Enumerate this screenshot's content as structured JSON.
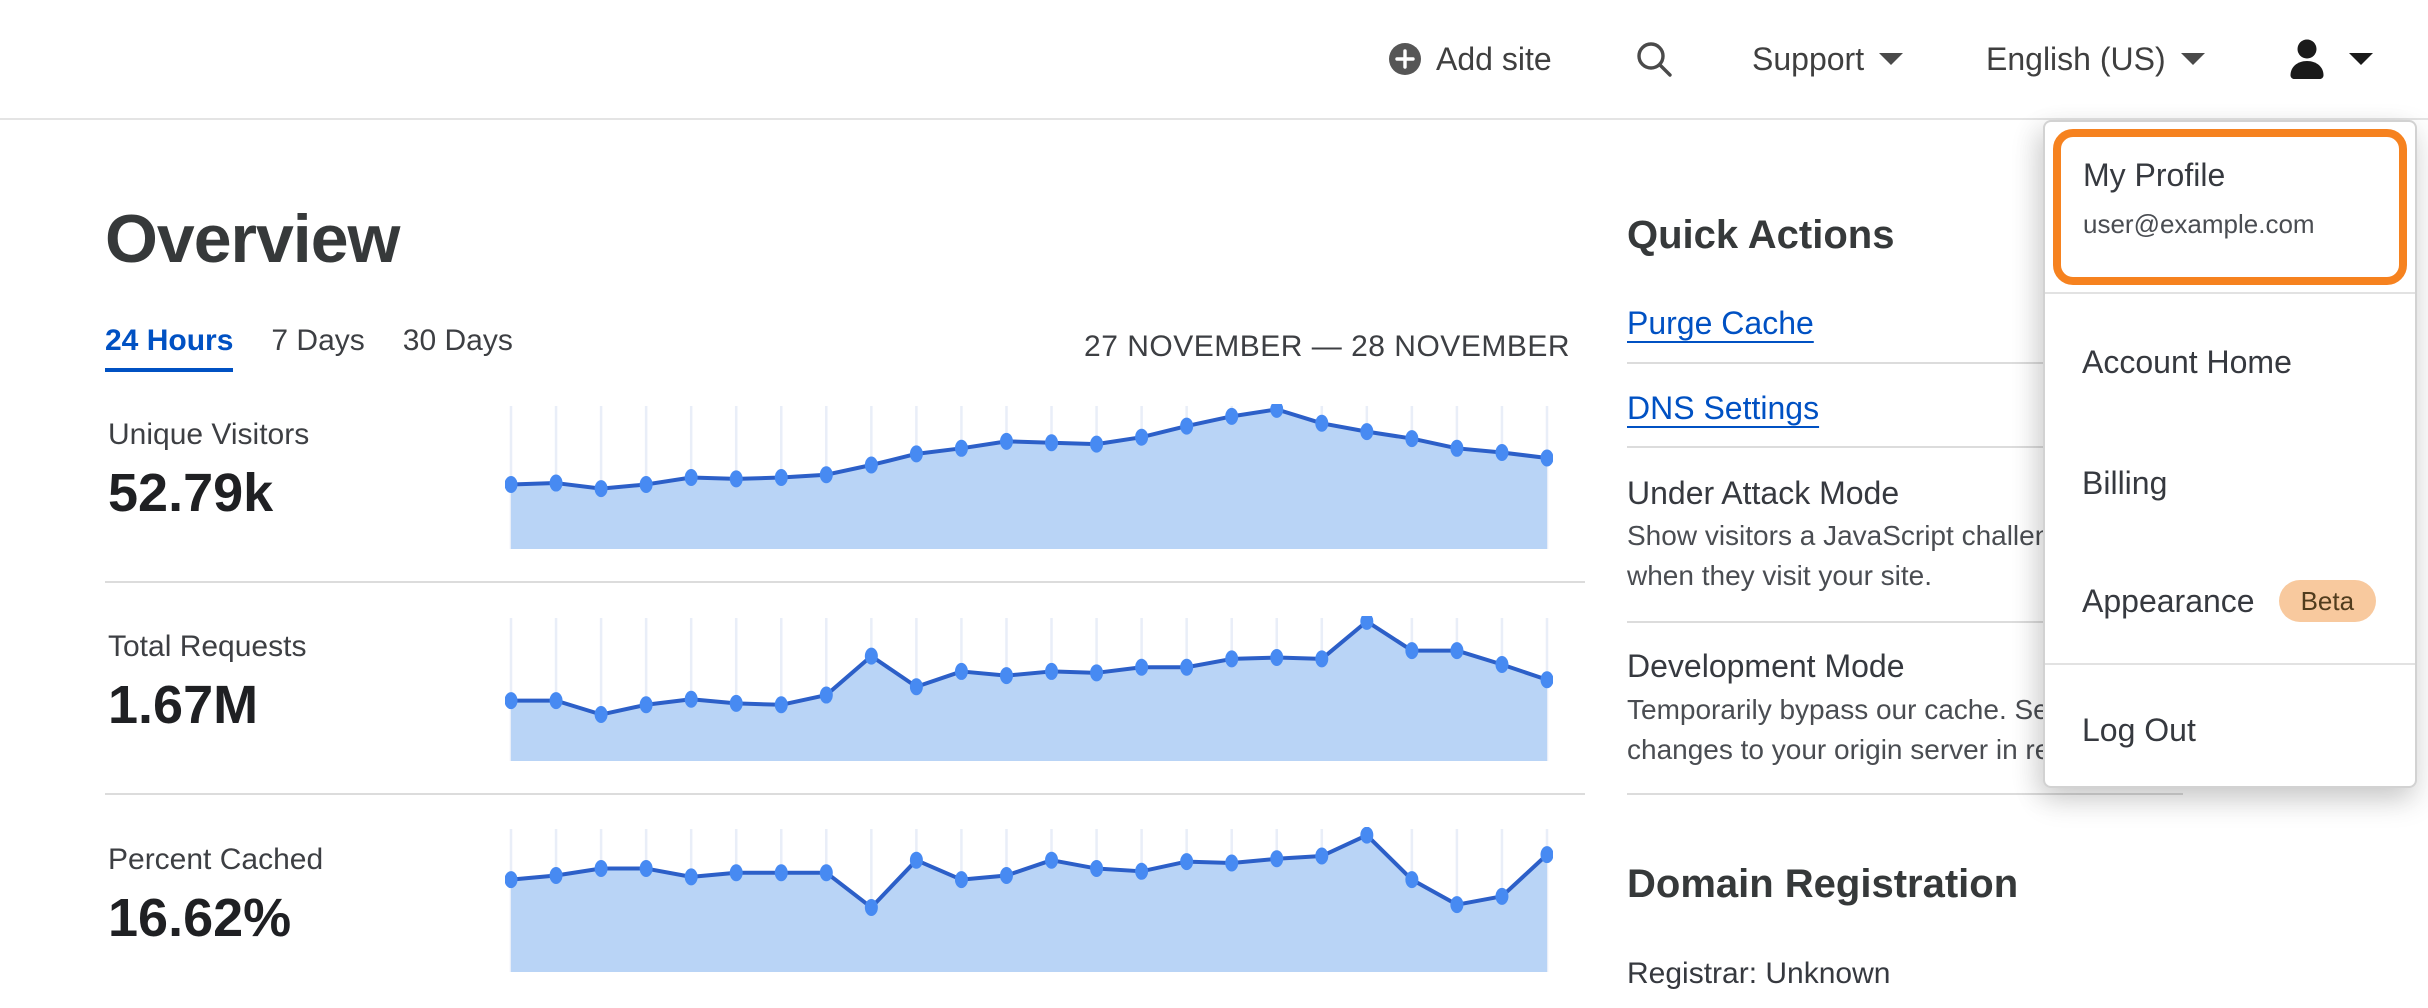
{
  "header": {
    "add_site_label": "Add site",
    "support_label": "Support",
    "language_label": "English (US)"
  },
  "overview": {
    "title": "Overview",
    "tabs": [
      {
        "label": "24 Hours",
        "active": true
      },
      {
        "label": "7 Days",
        "active": false
      },
      {
        "label": "30 Days",
        "active": false
      }
    ],
    "date_range": "27 NOVEMBER — 28 NOVEMBER"
  },
  "metrics": [
    {
      "label": "Unique Visitors",
      "value": "52.79k"
    },
    {
      "label": "Total Requests",
      "value": "1.67M"
    },
    {
      "label": "Percent Cached",
      "value": "16.62%"
    }
  ],
  "chart_data": [
    {
      "type": "area",
      "title": "Unique Visitors (24 Hours)",
      "summary_value": "52.79k",
      "x_range": "27 November — 28 November, 24 hourly points",
      "value_scale": "relative height 0-1 (sparkline, no y-axis labels shown)",
      "values": [
        0.45,
        0.46,
        0.42,
        0.45,
        0.5,
        0.49,
        0.5,
        0.52,
        0.59,
        0.67,
        0.71,
        0.76,
        0.75,
        0.74,
        0.79,
        0.87,
        0.94,
        0.99,
        0.89,
        0.83,
        0.78,
        0.71,
        0.68,
        0.64
      ],
      "grid": "vertical gridlines at each point",
      "legend": "none"
    },
    {
      "type": "area",
      "title": "Total Requests (24 Hours)",
      "summary_value": "1.67M",
      "x_range": "27 November — 28 November, 24 hourly points",
      "value_scale": "relative height 0-1 (sparkline, no y-axis labels shown)",
      "values": [
        0.42,
        0.42,
        0.32,
        0.39,
        0.43,
        0.4,
        0.39,
        0.46,
        0.74,
        0.52,
        0.63,
        0.6,
        0.63,
        0.62,
        0.66,
        0.66,
        0.72,
        0.73,
        0.72,
        0.99,
        0.78,
        0.78,
        0.68,
        0.57
      ],
      "grid": "vertical gridlines at each point",
      "legend": "none"
    },
    {
      "type": "area",
      "title": "Percent Cached (24 Hours)",
      "summary_value": "16.62%",
      "x_range": "27 November — 28 November, 24 hourly points",
      "value_scale": "relative height 0-1 (sparkline, no y-axis labels shown)",
      "values": [
        0.65,
        0.68,
        0.73,
        0.73,
        0.67,
        0.7,
        0.7,
        0.7,
        0.45,
        0.79,
        0.65,
        0.68,
        0.79,
        0.73,
        0.71,
        0.78,
        0.77,
        0.8,
        0.82,
        0.97,
        0.65,
        0.47,
        0.53,
        0.83
      ],
      "grid": "vertical gridlines at each point",
      "legend": "none"
    }
  ],
  "chart_style": {
    "line_color": "#2c5fc8",
    "dot_color": "#478af2",
    "fill_color": "#b9d4f6",
    "gridline_color": "#e9eef8"
  },
  "quick_actions": {
    "title": "Quick Actions",
    "links": [
      "Purge Cache",
      "DNS Settings"
    ],
    "features": [
      {
        "title": "Under Attack Mode",
        "description_lines": [
          "Show visitors a JavaScript challenge",
          "when they visit your site."
        ]
      },
      {
        "title": "Development Mode",
        "description_lines": [
          "Temporarily bypass our cache. See",
          "changes to your origin server in real time."
        ]
      }
    ]
  },
  "domain_registration": {
    "title": "Domain Registration",
    "registrar": "Registrar: Unknown"
  },
  "profile_menu": {
    "name": "My Profile",
    "email": "user@example.com",
    "items": [
      "Account Home",
      "Billing",
      "Appearance",
      "Log Out"
    ],
    "beta_badge": "Beta"
  },
  "colors": {
    "accent_blue": "#0051c3",
    "highlight_orange": "#f6821f",
    "beta_badge_bg": "#f8c99e",
    "divider_gray": "#dcdcdc"
  }
}
